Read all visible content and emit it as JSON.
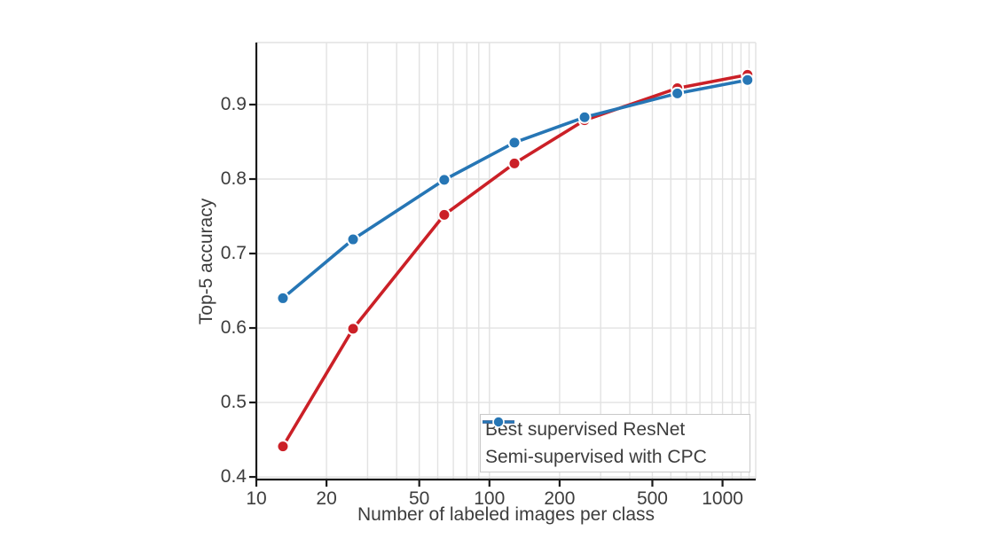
{
  "chart_data": {
    "type": "line",
    "title": "",
    "xlabel": "Number of labeled images per class",
    "ylabel": "Top-5 accuracy",
    "x_scale": "log",
    "x": [
      13,
      26,
      64,
      128,
      256,
      640,
      1280
    ],
    "series": [
      {
        "name": "Best supervised ResNet",
        "color": "#cb2027",
        "values": [
          0.441,
          0.599,
          0.752,
          0.821,
          0.879,
          0.922,
          0.94
        ]
      },
      {
        "name": "Semi-supervised with CPC",
        "color": "#2676b5",
        "values": [
          0.64,
          0.719,
          0.799,
          0.849,
          0.883,
          0.915,
          0.933
        ]
      }
    ],
    "x_ticks": [
      10,
      20,
      50,
      100,
      200,
      500,
      1000
    ],
    "y_ticks": [
      0.4,
      0.5,
      0.6,
      0.7,
      0.8,
      0.9
    ],
    "xlim": [
      10,
      1388
    ],
    "ylim": [
      0.3965,
      0.9833
    ],
    "grid": true,
    "legend_position": "lower right"
  },
  "colors": {
    "grid": "#e2e2e2",
    "axis": "#1a1a1a",
    "text": "#3d3d3d",
    "legend_border": "#c9c9c9",
    "marker_edge": "#ffffff",
    "background": "#ffffff"
  }
}
